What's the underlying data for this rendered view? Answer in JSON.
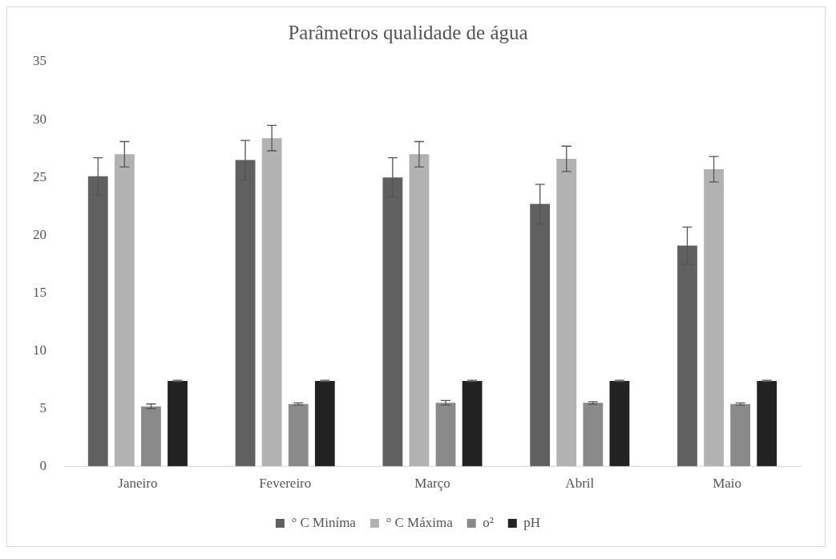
{
  "chart_data": {
    "type": "bar",
    "title": "Parâmetros qualidade de água",
    "categories": [
      "Janeiro",
      "Fevereiro",
      "Março",
      "Abril",
      "Maio"
    ],
    "series": [
      {
        "name": "° C Miníma",
        "color": "#606060",
        "values": [
          25.1,
          26.5,
          25.0,
          22.7,
          19.1
        ],
        "errors": [
          1.6,
          1.7,
          1.7,
          1.7,
          1.6
        ]
      },
      {
        "name": "° C Máxima",
        "color": "#b2b2b2",
        "values": [
          27.0,
          28.4,
          27.0,
          26.6,
          25.7
        ],
        "errors": [
          1.1,
          1.1,
          1.1,
          1.1,
          1.1
        ]
      },
      {
        "name": "o²",
        "color": "#8a8a8a",
        "values": [
          5.2,
          5.4,
          5.5,
          5.5,
          5.4
        ],
        "errors": [
          0.2,
          0.1,
          0.2,
          0.1,
          0.1
        ]
      },
      {
        "name": "pH",
        "color": "#222222",
        "values": [
          7.4,
          7.4,
          7.4,
          7.4,
          7.4
        ],
        "errors": [
          0.05,
          0.05,
          0.05,
          0.05,
          0.05
        ]
      }
    ],
    "ylim": [
      0,
      35
    ],
    "yticks": [
      0,
      5,
      10,
      15,
      20,
      25,
      30,
      35
    ],
    "grid": false,
    "legend": "bottom"
  }
}
